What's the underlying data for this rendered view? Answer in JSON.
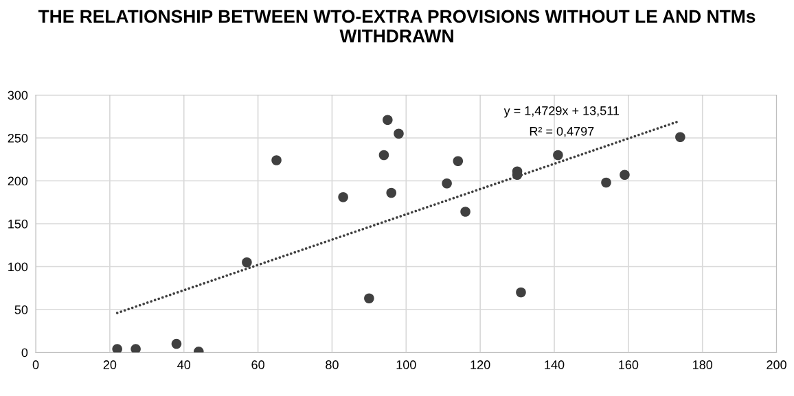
{
  "chart_data": {
    "type": "scatter",
    "title": "THE RELATIONSHIP BETWEEN WTO-EXTRA PROVISIONS WITHOUT LE AND NTMs WITHDRAWN",
    "series": [
      {
        "color": "#404040",
        "marker": "circle",
        "x": [
          22,
          27,
          38,
          44,
          57,
          65,
          83,
          90,
          94,
          95,
          96,
          98,
          111,
          114,
          116,
          130,
          130,
          131,
          141,
          154,
          159,
          174
        ],
        "values": [
          4,
          4,
          10,
          1,
          105,
          224,
          181,
          63,
          230,
          271,
          186,
          255,
          197,
          223,
          164,
          211,
          207,
          70,
          230,
          198,
          207,
          251
        ]
      },
      {
        "type": "line",
        "color": "#404040",
        "line_style": "dotted",
        "x": [
          22,
          174
        ],
        "values": [
          46,
          270
        ]
      }
    ],
    "annotations": [
      "y = 1,4729x + 13,511",
      "R² = 0,4797"
    ],
    "xlim": [
      0,
      200
    ],
    "xticks": [
      0,
      20,
      40,
      60,
      80,
      100,
      120,
      140,
      160,
      180,
      200
    ],
    "ylim": [
      0,
      300
    ],
    "yticks": [
      0,
      50,
      100,
      150,
      200,
      250,
      300
    ],
    "grid": true
  }
}
